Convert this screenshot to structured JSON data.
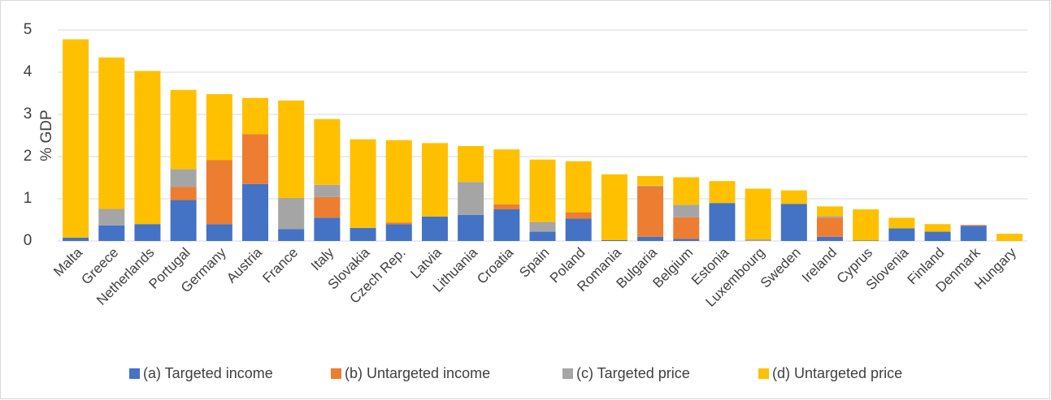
{
  "chart_data": {
    "type": "stacked_bar",
    "y_label": "% GDP",
    "categories": [
      "Malta",
      "Greece",
      "Netherlands",
      "Portugal",
      "Germany",
      "Austria",
      "France",
      "Italy",
      "Slovakia",
      "Czech Rep.",
      "Latvia",
      "Lithuania",
      "Croatia",
      "Spain",
      "Poland",
      "Romania",
      "Bulgaria",
      "Belgium",
      "Estonia",
      "Luxembourg",
      "Sweden",
      "Ireland",
      "Cyprus",
      "Slovenia",
      "Finland",
      "Denmark",
      "Hungary"
    ],
    "series": [
      {
        "name": "(a) Targeted income",
        "color": "#4472c4",
        "values": [
          0.08,
          0.37,
          0.4,
          0.97,
          0.4,
          1.35,
          0.28,
          0.55,
          0.31,
          0.4,
          0.58,
          0.62,
          0.75,
          0.22,
          0.53,
          0.02,
          0.1,
          0.05,
          0.9,
          0,
          0.88,
          0.1,
          0.01,
          0.3,
          0.22,
          0.36,
          0
        ]
      },
      {
        "name": "(b) Untargeted income",
        "color": "#ed7d31",
        "values": [
          0,
          0,
          0,
          0.31,
          1.52,
          1.18,
          0,
          0.49,
          0,
          0.04,
          0,
          0,
          0.12,
          0,
          0.15,
          0,
          1.19,
          0.51,
          0,
          0,
          0,
          0.45,
          0,
          0,
          0,
          0.02,
          0
        ]
      },
      {
        "name": "(c) Targeted price",
        "color": "#a5a5a5",
        "values": [
          0,
          0.39,
          0,
          0.42,
          0,
          0,
          0.74,
          0.29,
          0,
          0,
          0,
          0.78,
          0,
          0.23,
          0,
          0,
          0.02,
          0.3,
          0,
          0.04,
          0,
          0.04,
          0,
          0,
          0,
          0,
          0
        ]
      },
      {
        "name": "(d) Untargeted price",
        "color": "#ffc000",
        "values": [
          4.7,
          3.59,
          3.63,
          1.88,
          1.56,
          0.86,
          2.31,
          1.56,
          2.1,
          1.95,
          1.74,
          0.85,
          1.3,
          1.48,
          1.21,
          1.56,
          0.23,
          0.65,
          0.52,
          1.2,
          0.32,
          0.23,
          0.74,
          0.25,
          0.18,
          0,
          0.17
        ]
      }
    ],
    "ylim": [
      0,
      5
    ],
    "yticks": [
      0,
      1,
      2,
      3,
      4,
      5
    ],
    "grid": true,
    "legend": "bottom"
  }
}
